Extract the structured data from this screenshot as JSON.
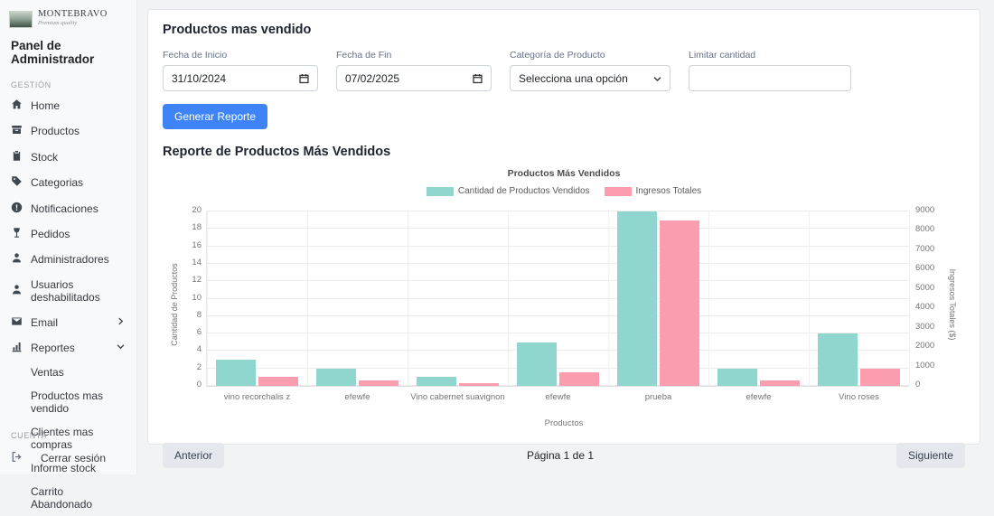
{
  "brand": {
    "name": "MONTEBRAVO",
    "tagline": "Premium quality"
  },
  "colors": {
    "primary": "#3e84f6",
    "teal": "#8ED6CE",
    "pink": "#FB9DAF"
  },
  "sidebar": {
    "title": "Panel de Administrador",
    "section_gestion": "GESTIÓN",
    "items": [
      {
        "label": "Home",
        "icon": "home-icon"
      },
      {
        "label": "Productos",
        "icon": "box-icon"
      },
      {
        "label": "Stock",
        "icon": "clipboard-icon"
      },
      {
        "label": "Categorias",
        "icon": "tag-icon"
      },
      {
        "label": "Notificaciones",
        "icon": "info-circle-icon"
      },
      {
        "label": "Pedidos",
        "icon": "wine-glass-icon"
      },
      {
        "label": "Administradores",
        "icon": "person-icon"
      },
      {
        "label": "Usuarios deshabilitados",
        "icon": "person-icon"
      },
      {
        "label": "Email",
        "icon": "envelope-icon"
      },
      {
        "label": "Reportes",
        "icon": "bar-chart-icon"
      }
    ],
    "reportes_children": [
      "Ventas",
      "Productos mas vendido",
      "Clientes mas compras",
      "Informe stock",
      "Carrito Abandonado"
    ],
    "section_cuenta": "CUENTA",
    "logout": "Cerrar sesión"
  },
  "main": {
    "title": "Productos mas vendido",
    "form": {
      "fecha_inicio": {
        "label": "Fecha de Inicio",
        "value": "31/10/2024"
      },
      "fecha_fin": {
        "label": "Fecha de Fin",
        "value": "07/02/2025"
      },
      "categoria": {
        "label": "Categoría de Producto",
        "selected": "Selecciona una opción"
      },
      "limitar": {
        "label": "Limitar cantidad",
        "value": "",
        "placeholder": ""
      }
    },
    "generate_button": "Generar Reporte",
    "report_title": "Reporte de Productos Más Vendidos",
    "pagination": {
      "prev": "Anterior",
      "page": "Página 1 de 1",
      "next": "Siguiente"
    }
  },
  "chart_data": {
    "type": "bar",
    "title": "Productos Más Vendidos",
    "categories": [
      "vino recorchalis z",
      "efewfe",
      "Vino cabernet suavignon",
      "efewfe",
      "prueba",
      "efewfe",
      "Vino roses"
    ],
    "series": [
      {
        "name": "Cantidad de Productos Vendidos",
        "axis": "left",
        "color": "#8ED6CE",
        "values": [
          3,
          2,
          1,
          5,
          20,
          2,
          6
        ]
      },
      {
        "name": "Ingresos Totales",
        "axis": "right",
        "color": "#FB9DAF",
        "values": [
          450,
          300,
          150,
          720,
          8550,
          300,
          900
        ]
      }
    ],
    "xlabel": "Productos",
    "ylabel_left": "Cantidad de Productos",
    "ylabel_right": "Ingresos Totales ($)",
    "ylim_left": [
      0,
      20
    ],
    "ylim_right": [
      0,
      9000
    ],
    "yticks_left": [
      0,
      2,
      4,
      6,
      8,
      10,
      12,
      14,
      16,
      18,
      20
    ],
    "yticks_right": [
      0,
      1000,
      2000,
      3000,
      4000,
      5000,
      6000,
      7000,
      8000,
      9000
    ],
    "grid": true,
    "legend_position": "top"
  }
}
